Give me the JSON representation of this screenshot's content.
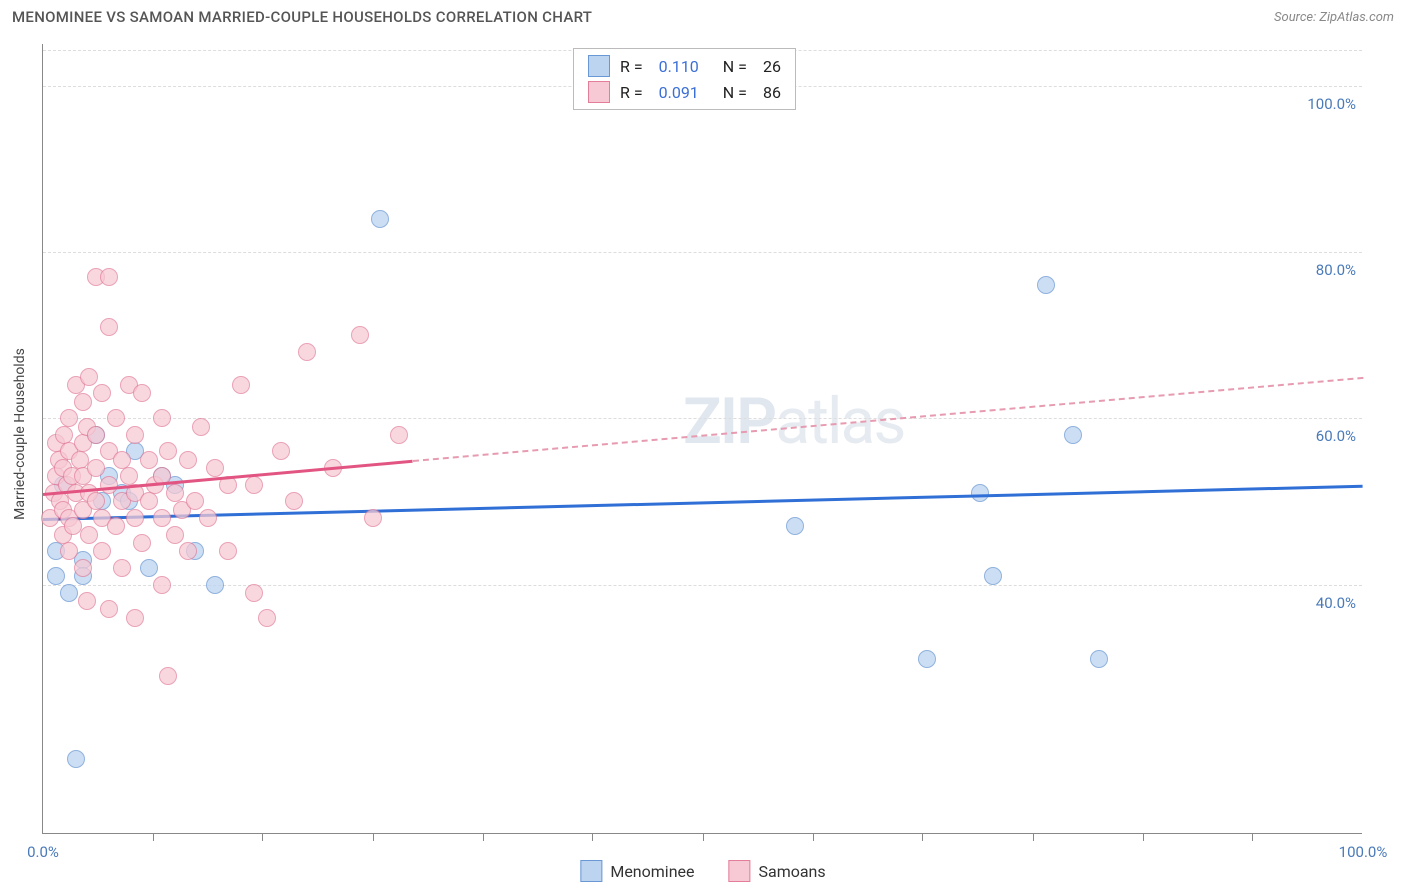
{
  "header": {
    "title": "MENOMINEE VS SAMOAN MARRIED-COUPLE HOUSEHOLDS CORRELATION CHART",
    "source": "Source: ZipAtlas.com"
  },
  "chart": {
    "type": "scatter",
    "background_color": "#ffffff",
    "grid_color": "#dddddd",
    "axis_color": "#888888",
    "xlim": [
      0,
      100
    ],
    "ylim": [
      10,
      105
    ],
    "x_ticks": [
      0,
      100
    ],
    "x_tick_labels": [
      "0.0%",
      "100.0%"
    ],
    "x_minor_ticks": [
      8.3,
      16.6,
      25,
      33.3,
      41.6,
      50,
      58.3,
      66.6,
      75,
      83.3,
      91.6
    ],
    "y_ticks": [
      40,
      60,
      80,
      100
    ],
    "y_tick_labels": [
      "40.0%",
      "60.0%",
      "80.0%",
      "100.0%"
    ],
    "y_axis_label": "Married-couple Households",
    "watermark_zip": "ZIP",
    "watermark_atlas": "atlas",
    "legend_top": {
      "rows": [
        {
          "color_fill": "#bcd4f0",
          "color_border": "#6a98d4",
          "r_label": "R =",
          "r_val": "0.110",
          "n_label": "N =",
          "n_val": "26"
        },
        {
          "color_fill": "#f7c9d4",
          "color_border": "#e27e9a",
          "r_label": "R =",
          "r_val": "0.091",
          "n_label": "N =",
          "n_val": "86"
        }
      ]
    },
    "legend_bottom": [
      {
        "label": "Menominee",
        "fill": "#bcd4f0",
        "border": "#6a98d4"
      },
      {
        "label": "Samoans",
        "fill": "#f7c9d4",
        "border": "#e27e9a"
      }
    ],
    "series": [
      {
        "name": "Menominee",
        "marker_fill": "#bcd4f0",
        "marker_border": "#6a98d4",
        "marker_opacity": 0.75,
        "marker_radius": 9,
        "trend": {
          "x1": 0,
          "y1": 48,
          "x2": 100,
          "y2": 52,
          "color": "#2f6fd6",
          "width": 3,
          "dash": false
        },
        "points": [
          [
            1,
            41
          ],
          [
            1,
            44
          ],
          [
            1.5,
            52
          ],
          [
            2,
            39
          ],
          [
            2.5,
            19
          ],
          [
            3,
            43
          ],
          [
            3,
            41
          ],
          [
            4,
            58
          ],
          [
            4.5,
            50
          ],
          [
            5,
            53
          ],
          [
            6,
            51
          ],
          [
            6.5,
            50
          ],
          [
            7,
            56
          ],
          [
            8,
            42
          ],
          [
            9,
            53
          ],
          [
            10,
            52
          ],
          [
            11.5,
            44
          ],
          [
            13,
            40
          ],
          [
            25.5,
            84
          ],
          [
            57,
            47
          ],
          [
            67,
            31
          ],
          [
            71,
            51
          ],
          [
            72,
            41
          ],
          [
            76,
            76
          ],
          [
            78,
            58
          ],
          [
            80,
            31
          ]
        ]
      },
      {
        "name": "Samoans",
        "marker_fill": "#f7c9d4",
        "marker_border": "#e27e9a",
        "marker_opacity": 0.72,
        "marker_radius": 9,
        "trend_solid": {
          "x1": 0,
          "y1": 51,
          "x2": 28,
          "y2": 55,
          "color": "#e25582",
          "width": 3,
          "dash": false
        },
        "trend_dashed": {
          "x1": 28,
          "y1": 55,
          "x2": 100,
          "y2": 65,
          "color": "#e79bb0",
          "width": 2,
          "dash": true
        },
        "points": [
          [
            0.5,
            48
          ],
          [
            0.8,
            51
          ],
          [
            1,
            53
          ],
          [
            1,
            57
          ],
          [
            1.2,
            55
          ],
          [
            1.3,
            50
          ],
          [
            1.5,
            46
          ],
          [
            1.5,
            49
          ],
          [
            1.5,
            54
          ],
          [
            1.6,
            58
          ],
          [
            1.8,
            52
          ],
          [
            2,
            44
          ],
          [
            2,
            48
          ],
          [
            2,
            56
          ],
          [
            2,
            60
          ],
          [
            2.2,
            53
          ],
          [
            2.3,
            47
          ],
          [
            2.5,
            51
          ],
          [
            2.5,
            64
          ],
          [
            2.8,
            55
          ],
          [
            3,
            42
          ],
          [
            3,
            49
          ],
          [
            3,
            53
          ],
          [
            3,
            57
          ],
          [
            3,
            62
          ],
          [
            3.3,
            38
          ],
          [
            3.3,
            59
          ],
          [
            3.5,
            46
          ],
          [
            3.5,
            51
          ],
          [
            3.5,
            65
          ],
          [
            4,
            50
          ],
          [
            4,
            54
          ],
          [
            4,
            58
          ],
          [
            4,
            77
          ],
          [
            4.5,
            44
          ],
          [
            4.5,
            48
          ],
          [
            4.5,
            63
          ],
          [
            5,
            37
          ],
          [
            5,
            52
          ],
          [
            5,
            56
          ],
          [
            5,
            71
          ],
          [
            5,
            77
          ],
          [
            5.5,
            47
          ],
          [
            5.5,
            60
          ],
          [
            6,
            42
          ],
          [
            6,
            50
          ],
          [
            6,
            55
          ],
          [
            6.5,
            53
          ],
          [
            6.5,
            64
          ],
          [
            7,
            36
          ],
          [
            7,
            48
          ],
          [
            7,
            51
          ],
          [
            7,
            58
          ],
          [
            7.5,
            45
          ],
          [
            7.5,
            63
          ],
          [
            8,
            50
          ],
          [
            8,
            55
          ],
          [
            8.5,
            52
          ],
          [
            9,
            40
          ],
          [
            9,
            48
          ],
          [
            9,
            53
          ],
          [
            9,
            60
          ],
          [
            9.5,
            29
          ],
          [
            9.5,
            56
          ],
          [
            10,
            46
          ],
          [
            10,
            51
          ],
          [
            10.5,
            49
          ],
          [
            11,
            44
          ],
          [
            11,
            55
          ],
          [
            11.5,
            50
          ],
          [
            12,
            59
          ],
          [
            12.5,
            48
          ],
          [
            13,
            54
          ],
          [
            14,
            44
          ],
          [
            14,
            52
          ],
          [
            15,
            64
          ],
          [
            16,
            39
          ],
          [
            16,
            52
          ],
          [
            17,
            36
          ],
          [
            18,
            56
          ],
          [
            19,
            50
          ],
          [
            20,
            68
          ],
          [
            22,
            54
          ],
          [
            24,
            70
          ],
          [
            25,
            48
          ],
          [
            27,
            58
          ]
        ]
      }
    ]
  }
}
